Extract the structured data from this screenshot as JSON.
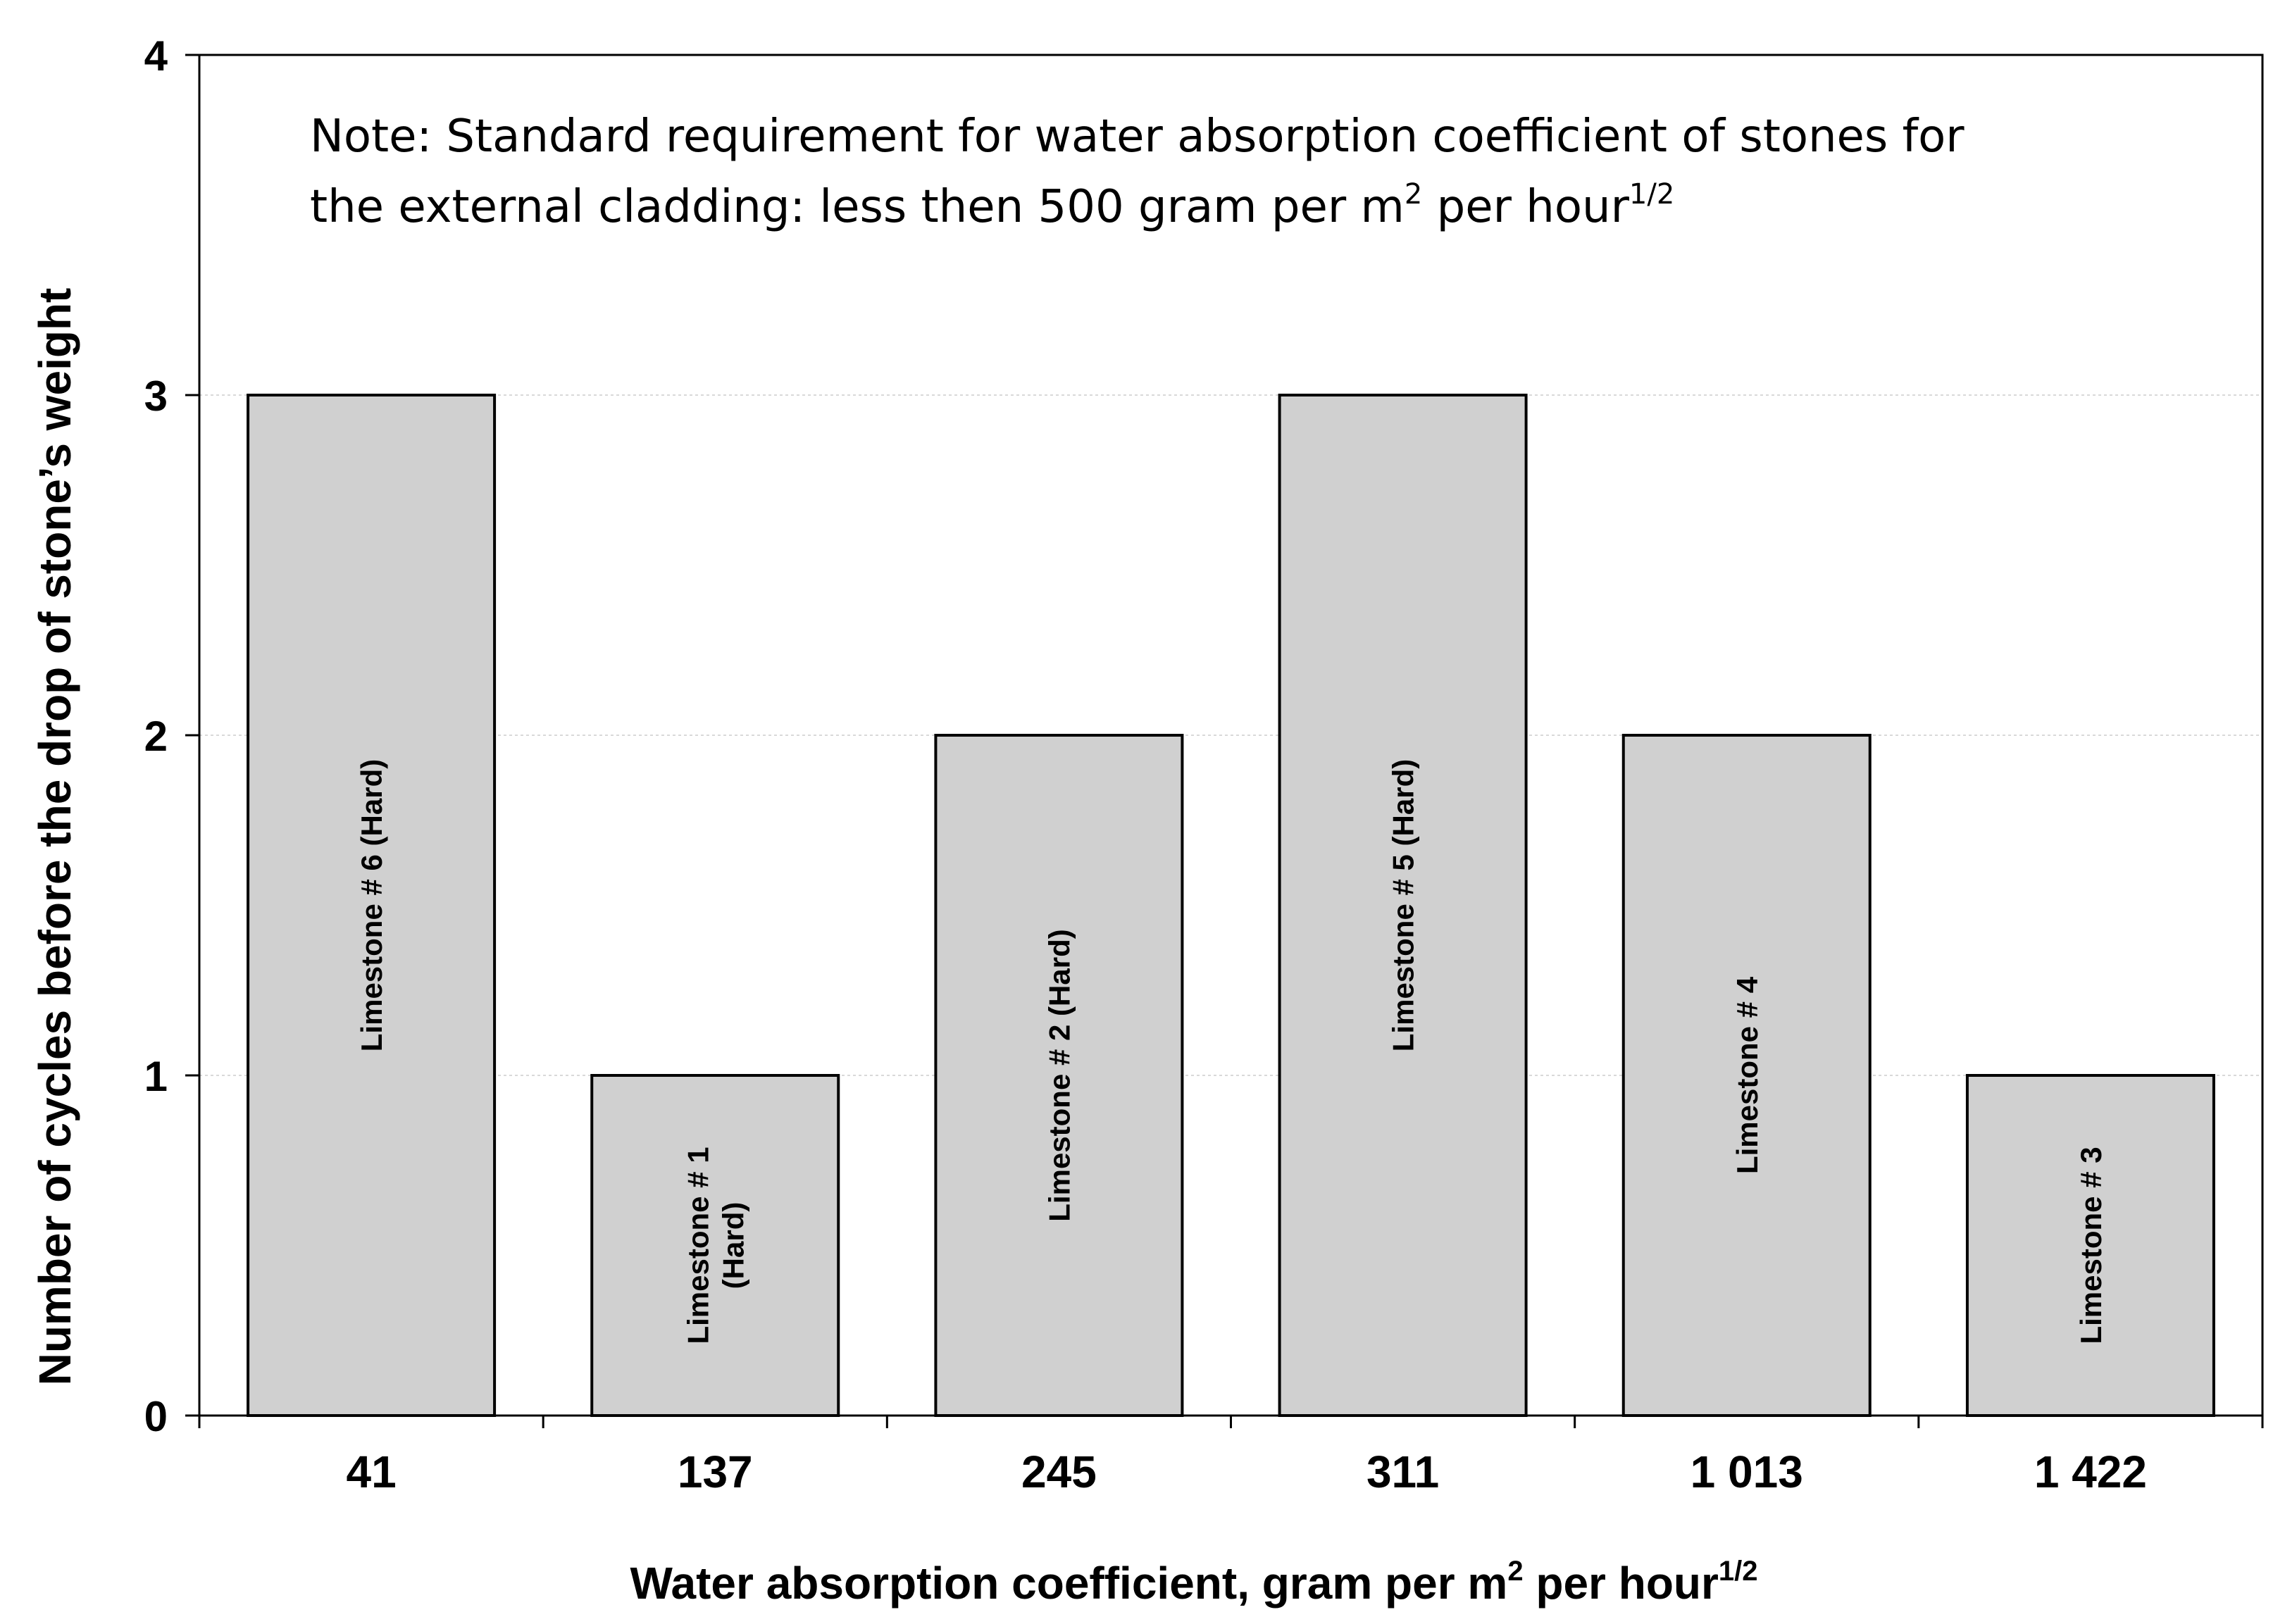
{
  "chart_data": {
    "type": "bar",
    "title": "",
    "categories": [
      "41",
      "137",
      "245",
      "311",
      "1 013",
      "1 422"
    ],
    "values": [
      3,
      1,
      2,
      3,
      2,
      1
    ],
    "bar_labels": [
      [
        "Limestone # 6  (Hard)"
      ],
      [
        "Limestone # 1",
        "(Hard)"
      ],
      [
        "Limestone # 2  (Hard)"
      ],
      [
        "Limestone # 5  (Hard)"
      ],
      [
        "Limestone # 4"
      ],
      [
        "Limestone # 3"
      ]
    ],
    "xlabel": "Water absorption coefficient, gram per m",
    "xlabel_sup1": "2",
    "xlabel_mid": " per hour",
    "xlabel_sup2": "1/2",
    "ylabel": "Number of cycles before the drop of stone’s weight",
    "ylim": [
      0,
      4
    ],
    "yticks": [
      "0",
      "1",
      "2",
      "3",
      "4"
    ],
    "grid": true,
    "bar_color": "#d0d0d0",
    "edge_color": "#000000",
    "note": {
      "line1": "Note: Standard requirement for water absorption coefficient of stones for",
      "line2_pre": "the external cladding: less then 500 gram per m",
      "line2_sup1": "2",
      "line2_mid": " per hour",
      "line2_sup2": "1/2"
    }
  }
}
